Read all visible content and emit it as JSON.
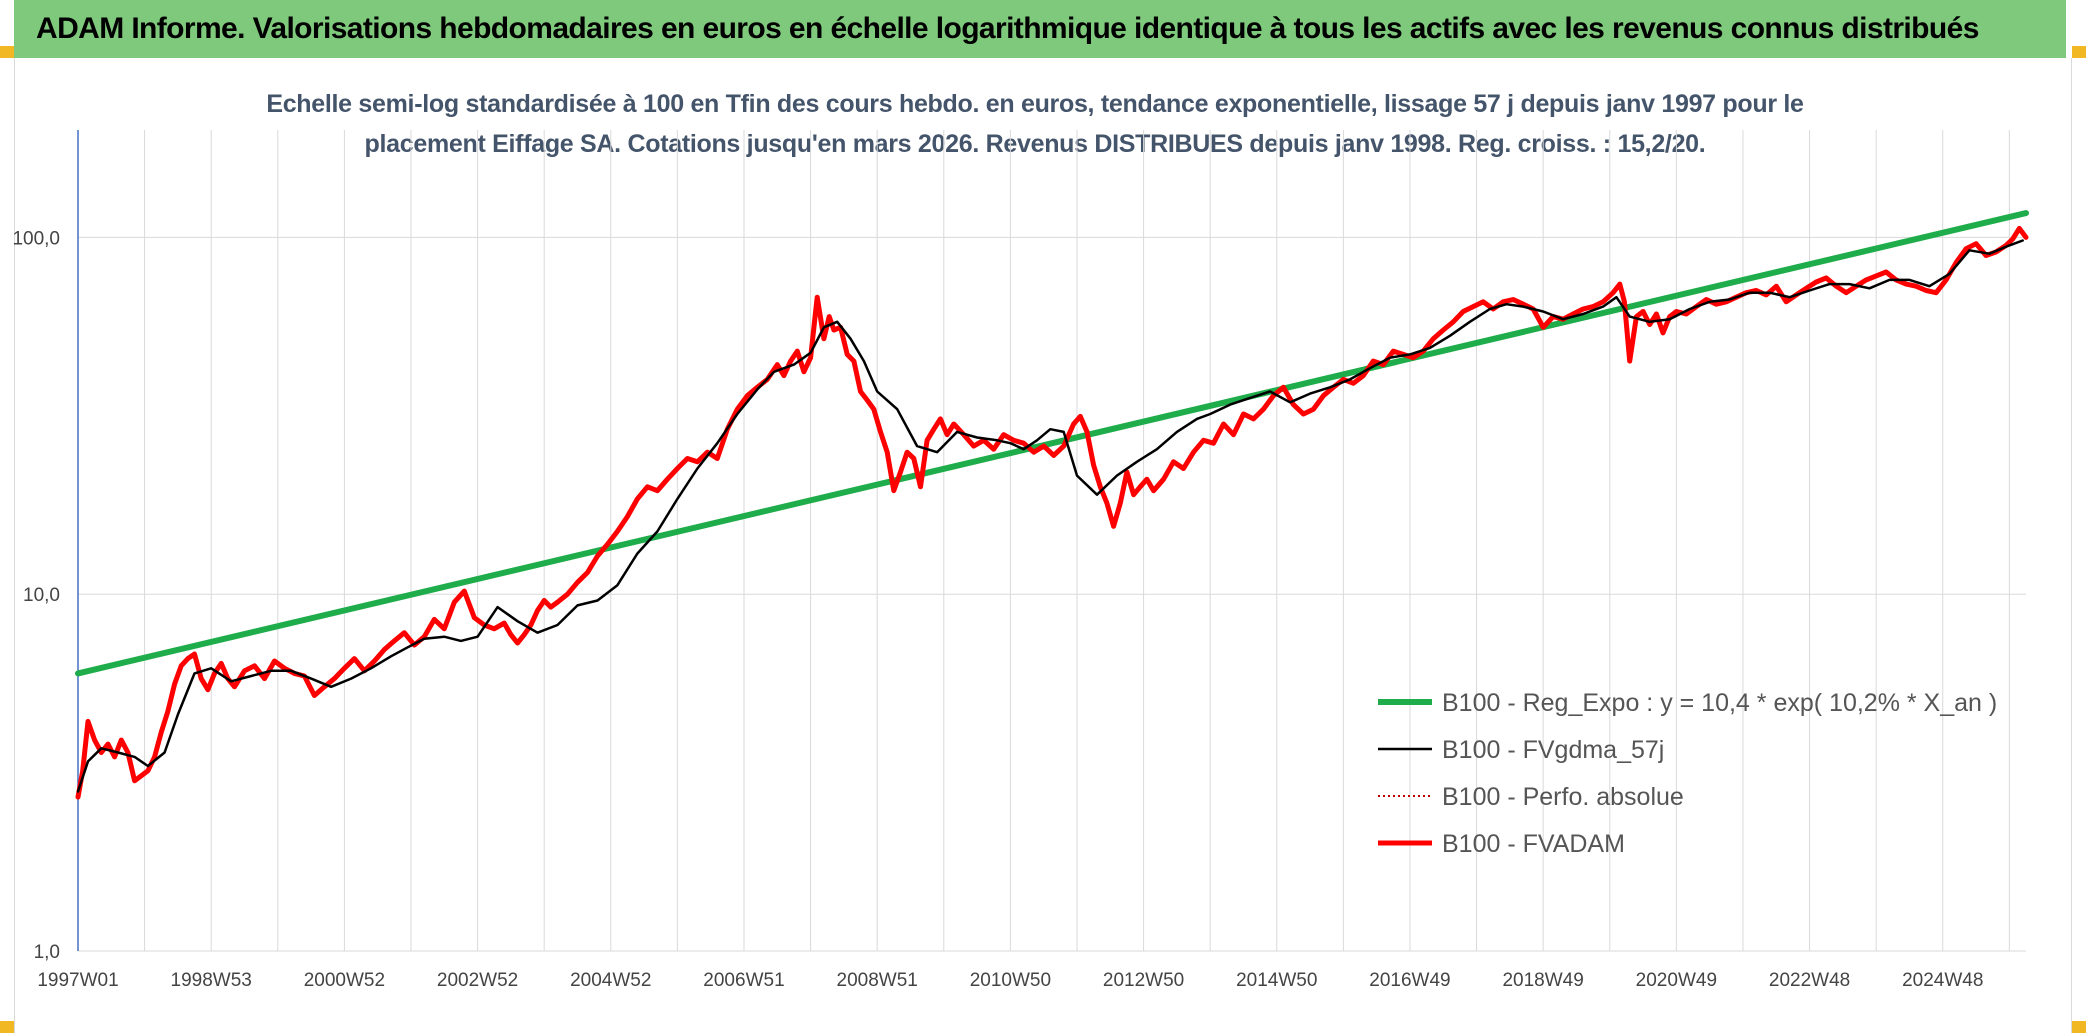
{
  "header": {
    "title": "ADAM Informe. Valorisations hebdomadaires en euros en échelle logarithmique identique à tous les actifs avec les revenus connus distribués"
  },
  "colors": {
    "title_bar": "#7fc97c",
    "accent_corners": "#f2b824",
    "subtitle_text": "#44546a"
  },
  "chart_data": {
    "type": "line",
    "subtitle_lines": [
      "Echelle semi-log standardisée à 100 en Tfin des cours hebdo. en euros, tendance exponentielle, lissage 57 j depuis janv 1997 pour le",
      "placement Eiffage SA. Cotations jusqu'en mars 2026. Revenus DISTRIBUES depuis janv 1998. Reg. croiss. : 15,2/20."
    ],
    "y_scale": "log",
    "ylim": [
      1,
      200
    ],
    "xlim": [
      1997.0,
      2026.25
    ],
    "grid": {
      "vertical": true,
      "horizontal": true
    },
    "legend_position": "right",
    "y_ticks": [
      {
        "value": 1,
        "label": "1,0"
      },
      {
        "value": 10,
        "label": "10,0"
      },
      {
        "value": 100,
        "label": "100,0"
      }
    ],
    "x_ticks": [
      {
        "value": 1997.0,
        "label": "1997W01"
      },
      {
        "value": 1999.0,
        "label": "1998W53"
      },
      {
        "value": 2001.0,
        "label": "2000W52"
      },
      {
        "value": 2003.0,
        "label": "2002W52"
      },
      {
        "value": 2005.0,
        "label": "2004W52"
      },
      {
        "value": 2007.0,
        "label": "2006W51"
      },
      {
        "value": 2009.0,
        "label": "2008W51"
      },
      {
        "value": 2011.0,
        "label": "2010W50"
      },
      {
        "value": 2013.0,
        "label": "2012W50"
      },
      {
        "value": 2015.0,
        "label": "2014W50"
      },
      {
        "value": 2017.0,
        "label": "2016W49"
      },
      {
        "value": 2019.0,
        "label": "2018W49"
      },
      {
        "value": 2021.0,
        "label": "2020W49"
      },
      {
        "value": 2023.0,
        "label": "2022W48"
      },
      {
        "value": 2025.0,
        "label": "2024W48"
      }
    ],
    "minor_gridlines_x": [
      1998.0,
      2000.0,
      2002.0,
      2004.0,
      2006.0,
      2008.0,
      2010.0,
      2012.0,
      2014.0,
      2016.0,
      2018.0,
      2020.0,
      2022.0,
      2024.0,
      2026.0
    ],
    "series": [
      {
        "name": "B100 - Reg_Expo : y = 10,4 * exp( 10,2% *  X_an )",
        "color": "#1fad4b",
        "style": "solid",
        "width": 6,
        "x": [
          1997.0,
          2026.25
        ],
        "y": [
          6.0,
          117
        ]
      },
      {
        "name": "B100 - FVgdma_57j",
        "color": "#000000",
        "style": "solid",
        "width": 2.5,
        "x": [
          1997.0,
          1997.15,
          1997.35,
          1997.6,
          1997.85,
          1998.05,
          1998.3,
          1998.5,
          1998.75,
          1999.0,
          1999.3,
          1999.6,
          1999.9,
          2000.2,
          2000.5,
          2000.8,
          2001.1,
          2001.4,
          2001.7,
          2001.95,
          2002.2,
          2002.5,
          2002.75,
          2003.0,
          2003.3,
          2003.6,
          2003.9,
          2004.2,
          2004.5,
          2004.8,
          2005.1,
          2005.4,
          2005.7,
          2006.0,
          2006.3,
          2006.6,
          2006.9,
          2007.2,
          2007.45,
          2007.75,
          2008.0,
          2008.2,
          2008.4,
          2008.6,
          2008.8,
          2009.0,
          2009.3,
          2009.6,
          2009.9,
          2010.2,
          2010.5,
          2010.8,
          2011.0,
          2011.2,
          2011.4,
          2011.6,
          2011.8,
          2012.0,
          2012.3,
          2012.6,
          2012.9,
          2013.2,
          2013.5,
          2013.8,
          2014.0,
          2014.3,
          2014.6,
          2014.9,
          2015.2,
          2015.5,
          2015.8,
          2016.1,
          2016.4,
          2016.7,
          2017.0,
          2017.3,
          2017.6,
          2017.9,
          2018.2,
          2018.45,
          2018.7,
          2019.0,
          2019.3,
          2019.6,
          2019.9,
          2020.1,
          2020.3,
          2020.6,
          2020.9,
          2021.2,
          2021.5,
          2021.8,
          2022.1,
          2022.4,
          2022.7,
          2023.0,
          2023.3,
          2023.6,
          2023.9,
          2024.2,
          2024.5,
          2024.8,
          2025.1,
          2025.4,
          2025.7,
          2026.0,
          2026.2
        ],
        "y": [
          2.8,
          3.4,
          3.7,
          3.6,
          3.5,
          3.3,
          3.6,
          4.6,
          6.0,
          6.2,
          5.7,
          5.9,
          6.1,
          6.1,
          5.8,
          5.5,
          5.8,
          6.2,
          6.7,
          7.1,
          7.5,
          7.6,
          7.4,
          7.6,
          9.2,
          8.4,
          7.8,
          8.2,
          9.3,
          9.6,
          10.6,
          13.0,
          15.0,
          18.5,
          22.5,
          26.5,
          32.0,
          37.5,
          42.0,
          44.0,
          47.5,
          56.0,
          58.0,
          52.0,
          45.0,
          37.0,
          33.0,
          26.0,
          25.0,
          28.5,
          27.5,
          27.0,
          26.5,
          25.5,
          27.0,
          29.0,
          28.5,
          21.5,
          19.0,
          21.5,
          23.5,
          25.5,
          28.5,
          31.0,
          32.0,
          34.0,
          35.5,
          37.0,
          34.5,
          36.5,
          38.0,
          40.0,
          43.0,
          46.0,
          47.0,
          49.0,
          53.0,
          58.0,
          63.0,
          65.0,
          64.0,
          62.0,
          59.0,
          61.0,
          64.0,
          68.0,
          60.0,
          58.0,
          59.0,
          63.0,
          66.0,
          67.0,
          70.0,
          70.0,
          68.0,
          71.0,
          74.0,
          74.0,
          72.0,
          76.0,
          76.0,
          73.0,
          79.0,
          92.0,
          90.0,
          95.0,
          98.0
        ]
      },
      {
        "name": "B100 - Perfo. absolue",
        "color": "#c00000",
        "style": "dotted",
        "width": 1.5,
        "x": [],
        "y": []
      },
      {
        "name": "B100 - FVADAM",
        "color": "#ff0000",
        "style": "solid",
        "width": 5,
        "x": [
          1997.0,
          1997.07,
          1997.15,
          1997.25,
          1997.35,
          1997.45,
          1997.55,
          1997.65,
          1997.75,
          1997.85,
          1997.95,
          1998.05,
          1998.15,
          1998.25,
          1998.35,
          1998.45,
          1998.55,
          1998.65,
          1998.75,
          1998.85,
          1998.95,
          1999.05,
          1999.15,
          1999.25,
          1999.35,
          1999.5,
          1999.65,
          1999.8,
          1999.95,
          2000.1,
          2000.25,
          2000.4,
          2000.55,
          2000.7,
          2000.85,
          2001.0,
          2001.15,
          2001.3,
          2001.45,
          2001.6,
          2001.75,
          2001.9,
          2002.05,
          2002.2,
          2002.35,
          2002.5,
          2002.65,
          2002.8,
          2002.95,
          2003.1,
          2003.25,
          2003.4,
          2003.5,
          2003.6,
          2003.7,
          2003.8,
          2003.9,
          2004.0,
          2004.1,
          2004.2,
          2004.35,
          2004.5,
          2004.65,
          2004.8,
          2004.95,
          2005.1,
          2005.25,
          2005.4,
          2005.55,
          2005.7,
          2005.85,
          2006.0,
          2006.15,
          2006.3,
          2006.45,
          2006.6,
          2006.75,
          2006.9,
          2007.05,
          2007.2,
          2007.35,
          2007.5,
          2007.6,
          2007.7,
          2007.8,
          2007.9,
          2008.0,
          2008.1,
          2008.2,
          2008.28,
          2008.35,
          2008.45,
          2008.55,
          2008.65,
          2008.75,
          2008.85,
          2008.95,
          2009.05,
          2009.15,
          2009.25,
          2009.35,
          2009.45,
          2009.55,
          2009.65,
          2009.75,
          2009.85,
          2009.95,
          2010.05,
          2010.15,
          2010.3,
          2010.45,
          2010.6,
          2010.75,
          2010.9,
          2011.05,
          2011.2,
          2011.35,
          2011.5,
          2011.65,
          2011.8,
          2011.95,
          2012.05,
          2012.15,
          2012.25,
          2012.35,
          2012.45,
          2012.55,
          2012.65,
          2012.75,
          2012.85,
          2012.95,
          2013.05,
          2013.15,
          2013.3,
          2013.45,
          2013.6,
          2013.75,
          2013.9,
          2014.05,
          2014.2,
          2014.35,
          2014.5,
          2014.65,
          2014.8,
          2014.95,
          2015.1,
          2015.25,
          2015.4,
          2015.55,
          2015.7,
          2015.85,
          2016.0,
          2016.15,
          2016.3,
          2016.45,
          2016.6,
          2016.75,
          2016.9,
          2017.05,
          2017.2,
          2017.35,
          2017.5,
          2017.65,
          2017.8,
          2017.95,
          2018.1,
          2018.25,
          2018.4,
          2018.55,
          2018.7,
          2018.85,
          2019.0,
          2019.15,
          2019.3,
          2019.45,
          2019.6,
          2019.75,
          2019.9,
          2020.05,
          2020.15,
          2020.22,
          2020.3,
          2020.4,
          2020.5,
          2020.6,
          2020.7,
          2020.8,
          2020.9,
          2021.0,
          2021.15,
          2021.3,
          2021.45,
          2021.6,
          2021.75,
          2021.9,
          2022.05,
          2022.2,
          2022.35,
          2022.5,
          2022.65,
          2022.8,
          2022.95,
          2023.1,
          2023.25,
          2023.4,
          2023.55,
          2023.7,
          2023.85,
          2024.0,
          2024.15,
          2024.3,
          2024.45,
          2024.6,
          2024.75,
          2024.9,
          2025.05,
          2025.2,
          2025.35,
          2025.5,
          2025.65,
          2025.8,
          2025.95,
          2026.05,
          2026.15,
          2026.25
        ],
        "y": [
          2.7,
          3.2,
          4.4,
          3.9,
          3.6,
          3.8,
          3.5,
          3.9,
          3.6,
          3.0,
          3.1,
          3.2,
          3.5,
          4.1,
          4.7,
          5.6,
          6.3,
          6.6,
          6.8,
          5.8,
          5.4,
          6.0,
          6.4,
          5.8,
          5.5,
          6.1,
          6.3,
          5.8,
          6.5,
          6.2,
          6.0,
          5.9,
          5.2,
          5.5,
          5.8,
          6.2,
          6.6,
          6.1,
          6.5,
          7.0,
          7.4,
          7.8,
          7.2,
          7.6,
          8.5,
          8.0,
          9.5,
          10.2,
          8.6,
          8.2,
          8.0,
          8.3,
          7.7,
          7.3,
          7.7,
          8.2,
          9.0,
          9.6,
          9.2,
          9.5,
          10.0,
          10.8,
          11.5,
          12.8,
          13.8,
          15.0,
          16.5,
          18.5,
          20.0,
          19.5,
          21.0,
          22.5,
          24.0,
          23.5,
          25.0,
          24.0,
          29.0,
          33.0,
          36.0,
          38.0,
          40.0,
          44.0,
          41.0,
          45.0,
          48.0,
          42.0,
          46.0,
          68.0,
          52.0,
          60.0,
          55.0,
          56.0,
          47.0,
          45.0,
          37.0,
          35.0,
          33.0,
          28.5,
          25.0,
          19.5,
          22.0,
          25.0,
          24.0,
          20.0,
          27.0,
          29.0,
          31.0,
          28.0,
          30.0,
          28.0,
          26.0,
          27.0,
          25.5,
          28.0,
          27.0,
          26.5,
          25.0,
          26.0,
          24.5,
          26.0,
          30.0,
          31.5,
          28.5,
          23.0,
          20.0,
          18.0,
          15.5,
          18.0,
          22.0,
          19.0,
          20.0,
          21.0,
          19.5,
          21.0,
          23.5,
          22.5,
          25.0,
          27.0,
          26.5,
          30.0,
          28.0,
          32.0,
          31.0,
          33.0,
          36.0,
          38.0,
          34.0,
          32.0,
          33.0,
          36.0,
          38.0,
          40.0,
          39.0,
          41.0,
          45.0,
          44.0,
          48.0,
          47.0,
          46.0,
          48.0,
          52.0,
          55.0,
          58.0,
          62.0,
          64.0,
          66.0,
          63.0,
          66.0,
          67.0,
          65.0,
          63.0,
          56.0,
          60.0,
          59.0,
          61.0,
          63.0,
          64.0,
          66.0,
          70.0,
          74.0,
          66.0,
          45.0,
          60.0,
          62.0,
          57.0,
          61.0,
          54.0,
          60.0,
          62.0,
          61.0,
          64.0,
          67.0,
          65.0,
          66.0,
          68.0,
          70.0,
          71.0,
          69.0,
          73.0,
          66.0,
          69.0,
          72.0,
          75.0,
          77.0,
          73.0,
          70.0,
          73.0,
          76.0,
          78.0,
          80.0,
          76.0,
          74.0,
          73.0,
          71.0,
          70.0,
          76.0,
          85.0,
          93.0,
          96.0,
          89.0,
          91.0,
          95.0,
          99.0,
          106.0,
          100.0
        ]
      }
    ]
  }
}
